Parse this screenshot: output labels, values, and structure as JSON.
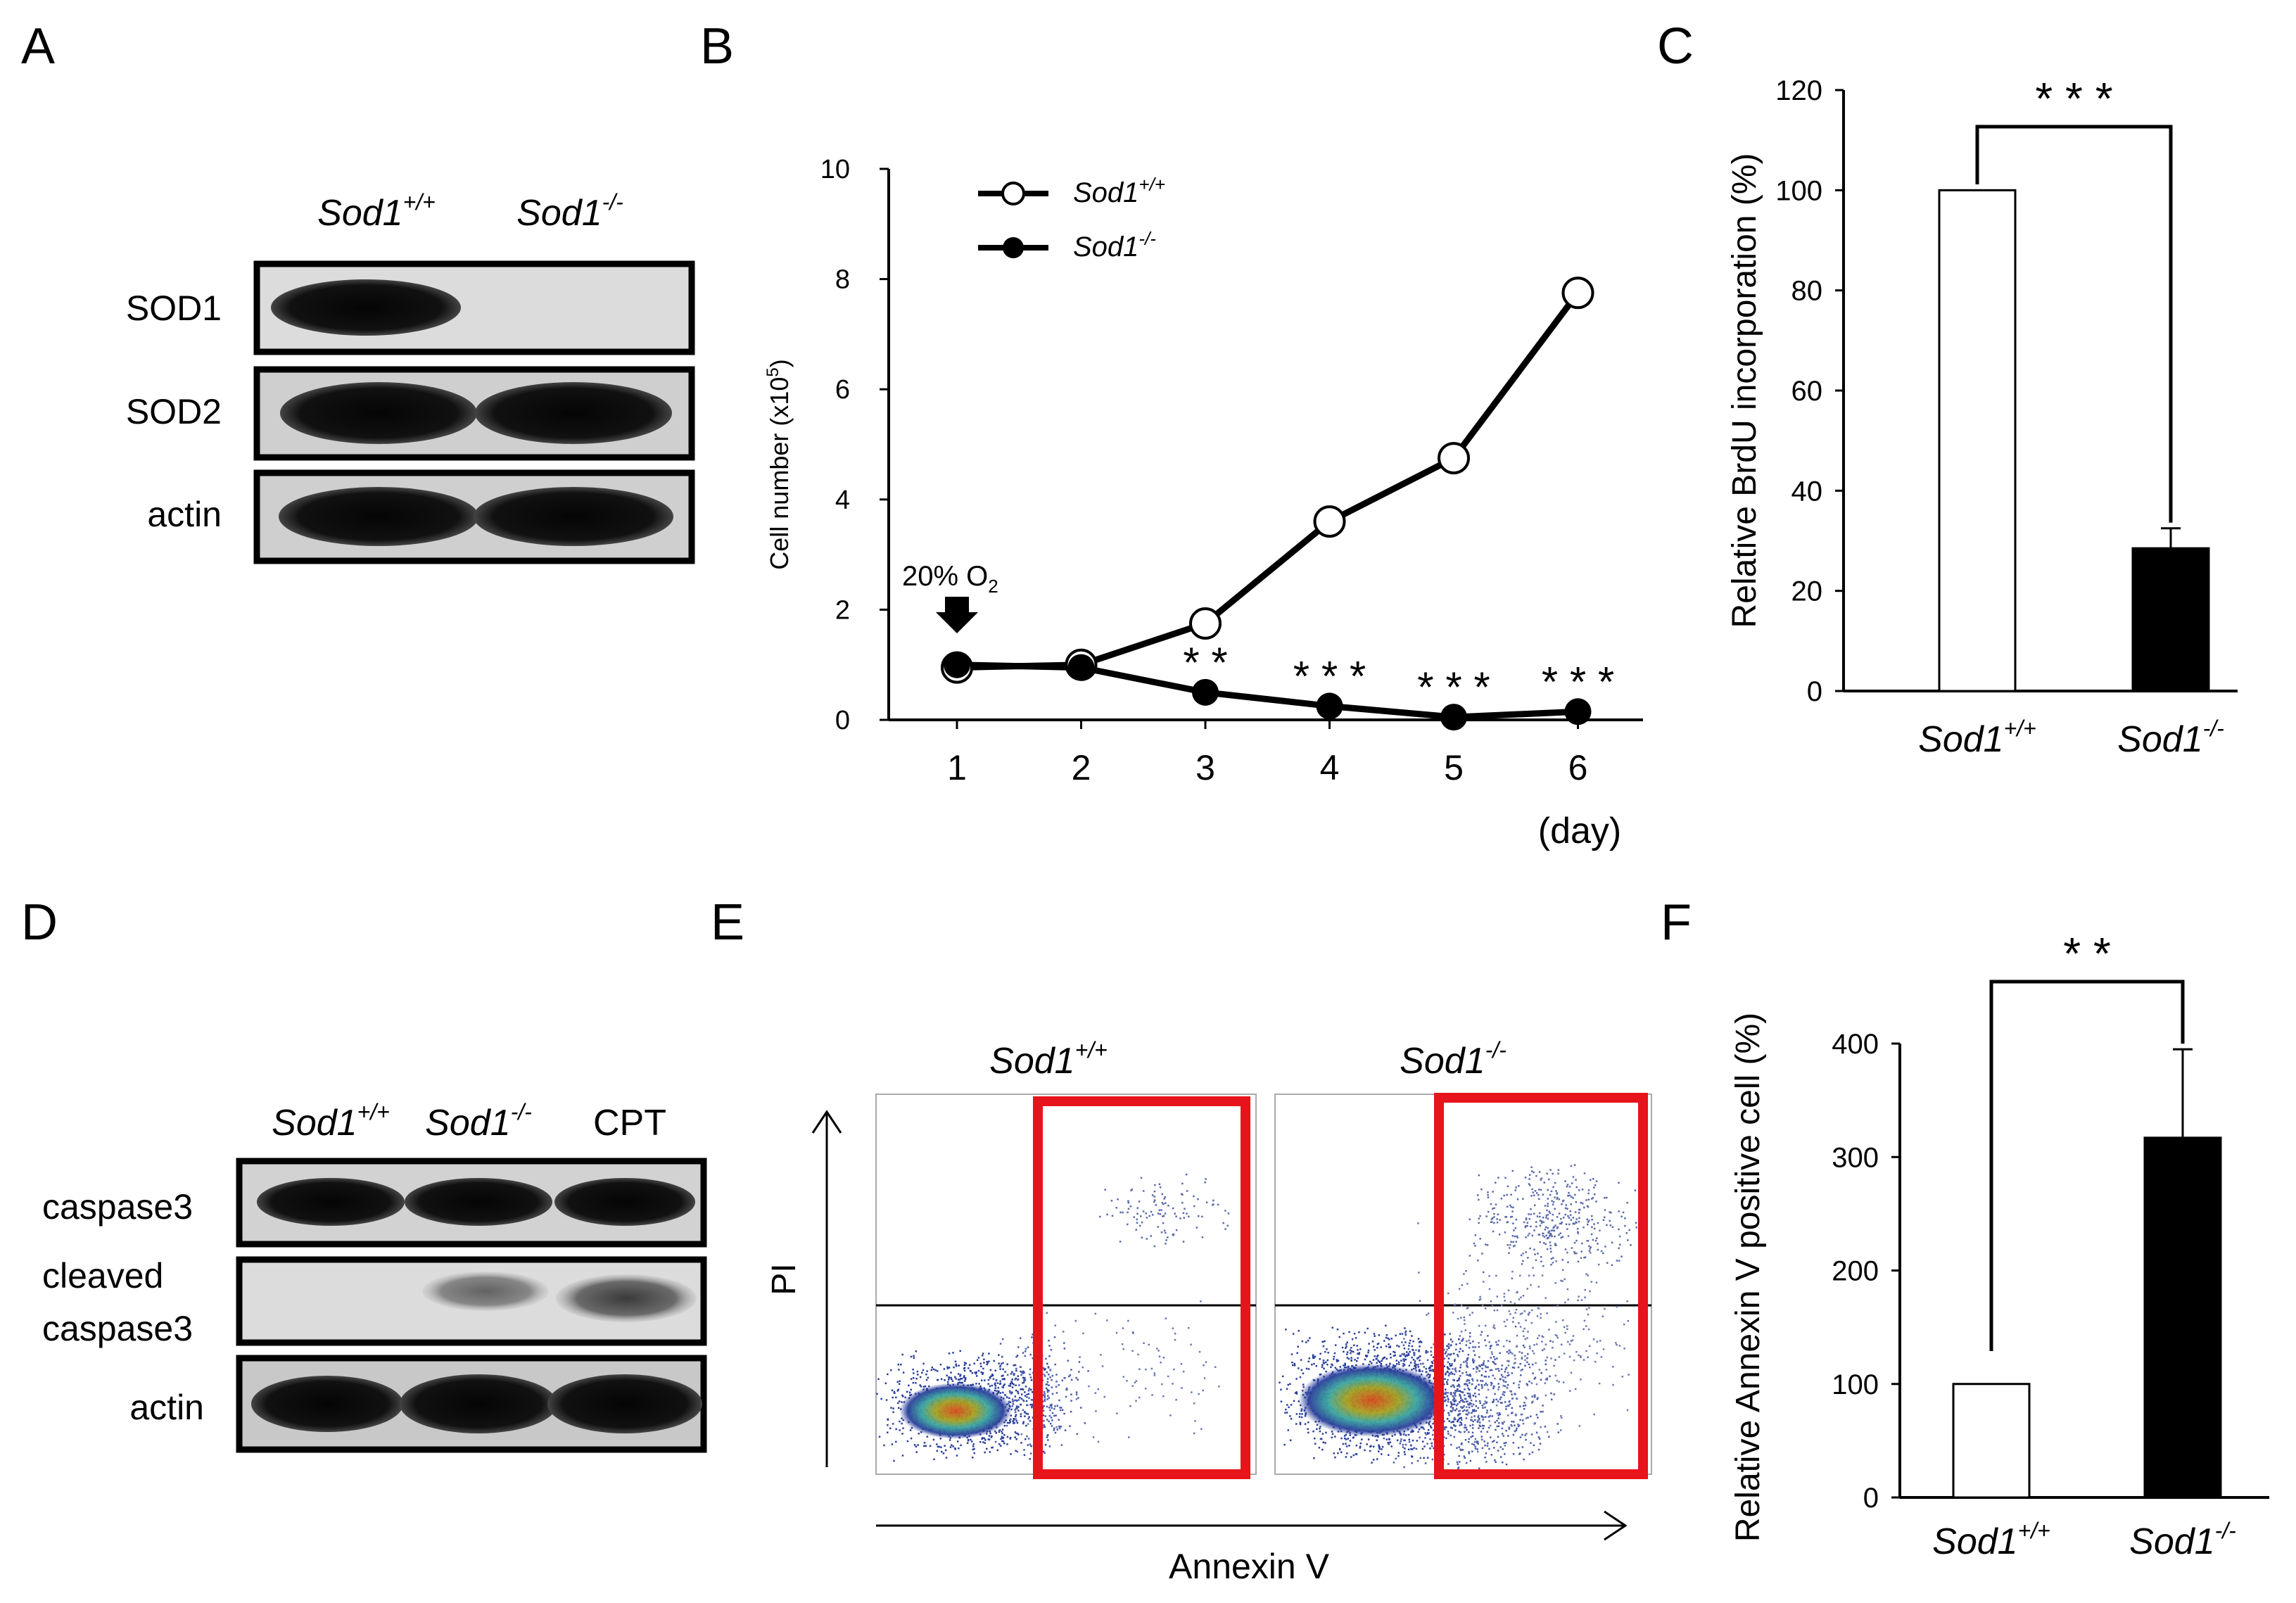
{
  "panels": {
    "A": {
      "letter": "A",
      "columns": [
        {
          "base": "Sod1",
          "sup": "+/+"
        },
        {
          "base": "Sod1",
          "sup": "-/-"
        }
      ],
      "rows": [
        "SOD1",
        "SOD2",
        "actin"
      ]
    },
    "B": {
      "letter": "B",
      "annotation": {
        "text": "20% O",
        "sub": "2"
      }
    },
    "C": {
      "letter": "C"
    },
    "D": {
      "letter": "D",
      "columns": [
        {
          "base": "Sod1",
          "sup": "+/+"
        },
        {
          "base": "Sod1",
          "sup": "-/-"
        },
        {
          "base": "CPT",
          "sup": ""
        }
      ],
      "rows": [
        {
          "line1": "caspase3",
          "line2": ""
        },
        {
          "line1": "cleaved",
          "line2": "caspase3"
        },
        {
          "line1": "actin",
          "line2": ""
        }
      ]
    },
    "E": {
      "letter": "E",
      "plots": [
        {
          "base": "Sod1",
          "sup": "+/+"
        },
        {
          "base": "Sod1",
          "sup": "-/-"
        }
      ],
      "xlabel": "Annexin V",
      "ylabel": "PI",
      "gate_color": "#e8141b"
    },
    "F": {
      "letter": "F"
    }
  },
  "chart_data": [
    {
      "panel": "B",
      "type": "line",
      "x": [
        1,
        2,
        3,
        4,
        5,
        6
      ],
      "xticks": [
        "1",
        "2",
        "3",
        "4",
        "5",
        "6"
      ],
      "xlabel": "(day)",
      "ylabel": "Cell number (x10",
      "ylabel_sup": "5",
      "ylabel_end": ")",
      "yticks": [
        "0",
        "2",
        "4",
        "6",
        "8",
        "10"
      ],
      "ylim": [
        0,
        10
      ],
      "series": [
        {
          "name": "Sod1",
          "name_sup": "+/+",
          "marker": "open",
          "values": [
            0.95,
            1.0,
            1.75,
            3.6,
            4.75,
            7.75
          ]
        },
        {
          "name": "Sod1",
          "name_sup": "-/-",
          "marker": "filled",
          "values": [
            1.0,
            0.95,
            0.5,
            0.25,
            0.05,
            0.15
          ]
        }
      ],
      "significance": [
        "",
        "",
        "**",
        "***",
        "***",
        "***"
      ]
    },
    {
      "panel": "C",
      "type": "bar",
      "categories": [
        {
          "base": "Sod1",
          "sup": "+/+"
        },
        {
          "base": "Sod1",
          "sup": "-/-"
        }
      ],
      "values": [
        100,
        28.5
      ],
      "errors": [
        0,
        4
      ],
      "fills": [
        "#ffffff",
        "#000000"
      ],
      "ylabel": "Relative BrdU incorporation (%)",
      "yticks": [
        "0",
        "20",
        "40",
        "60",
        "80",
        "100",
        "120"
      ],
      "ylim": [
        0,
        120
      ],
      "significance": "***"
    },
    {
      "panel": "F",
      "type": "bar",
      "categories": [
        {
          "base": "Sod1",
          "sup": "+/+"
        },
        {
          "base": "Sod1",
          "sup": "-/-"
        }
      ],
      "values": [
        100,
        317
      ],
      "errors": [
        0,
        78
      ],
      "fills": [
        "#ffffff",
        "#000000"
      ],
      "ylabel": "Relative Annexin V positive cell (%)",
      "yticks": [
        "0",
        "100",
        "200",
        "300",
        "400"
      ],
      "ylim": [
        0,
        400
      ],
      "significance": "**"
    }
  ]
}
